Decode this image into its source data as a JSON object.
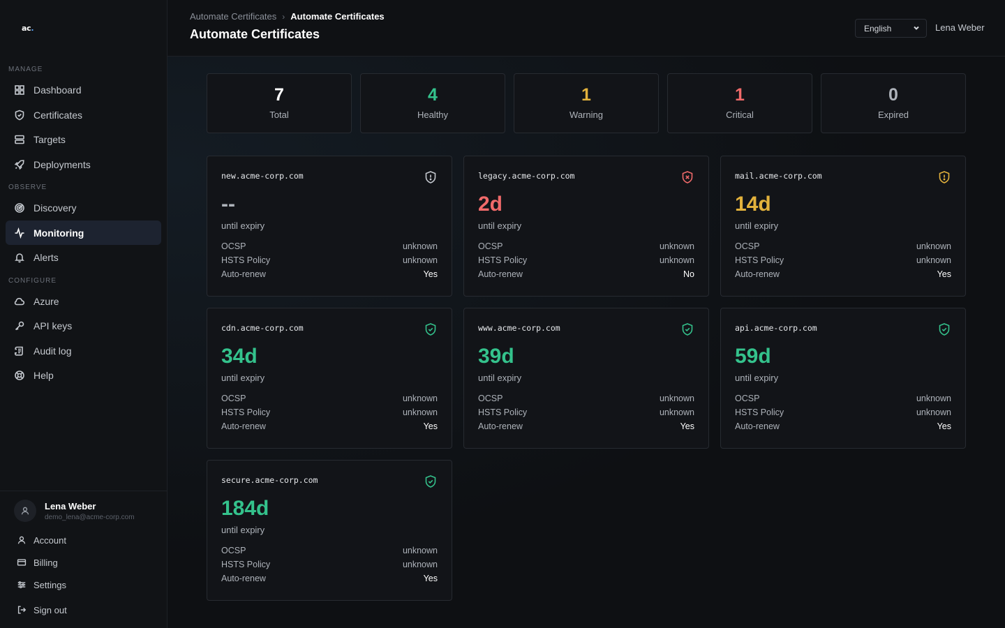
{
  "colors": {
    "healthy": "#34c28c",
    "warning": "#e3b23c",
    "critical": "#f06a6a",
    "neutral": "#ffffff",
    "muted": "#aeb3ba"
  },
  "brand": {
    "logo_text": "ac",
    "logo_dot": "."
  },
  "sidebar": {
    "sections": [
      {
        "label": "MANAGE",
        "items": [
          {
            "label": "Dashboard",
            "icon": "dashboard-icon"
          },
          {
            "label": "Certificates",
            "icon": "shield-icon"
          },
          {
            "label": "Targets",
            "icon": "server-icon"
          },
          {
            "label": "Deployments",
            "icon": "rocket-icon"
          }
        ]
      },
      {
        "label": "OBSERVE",
        "items": [
          {
            "label": "Discovery",
            "icon": "radar-icon"
          },
          {
            "label": "Monitoring",
            "icon": "activity-icon",
            "active": true
          },
          {
            "label": "Alerts",
            "icon": "bell-icon"
          }
        ]
      },
      {
        "label": "CONFIGURE",
        "items": [
          {
            "label": "Azure",
            "icon": "cloud-icon"
          },
          {
            "label": "API keys",
            "icon": "key-icon"
          },
          {
            "label": "Audit log",
            "icon": "scroll-icon"
          },
          {
            "label": "Help",
            "icon": "lifebuoy-icon"
          }
        ]
      }
    ],
    "user": {
      "name": "Lena Weber",
      "email": "demo_lena@acme-corp.com"
    },
    "account_menu": [
      {
        "label": "Account",
        "icon": "user-icon"
      },
      {
        "label": "Billing",
        "icon": "credit-card-icon"
      },
      {
        "label": "Settings",
        "icon": "sliders-icon"
      },
      {
        "label": "Sign out",
        "icon": "sign-out-icon"
      }
    ]
  },
  "header": {
    "breadcrumb": [
      "Automate Certificates",
      "Automate Certificates"
    ],
    "title": "Automate Certificates",
    "language": "English",
    "user_name": "Lena Weber"
  },
  "stats": [
    {
      "value": "7",
      "label": "Total",
      "status": "neutral"
    },
    {
      "value": "4",
      "label": "Healthy",
      "status": "healthy"
    },
    {
      "value": "1",
      "label": "Warning",
      "status": "warning"
    },
    {
      "value": "1",
      "label": "Critical",
      "status": "critical"
    },
    {
      "value": "0",
      "label": "Expired",
      "status": "muted"
    }
  ],
  "cards": [
    {
      "host": "new.acme-corp.com",
      "days": "--",
      "status": "muted",
      "icon": "shield-alert-icon",
      "until": "until expiry",
      "rows": [
        {
          "k": "OCSP",
          "v": "unknown"
        },
        {
          "k": "HSTS Policy",
          "v": "unknown"
        },
        {
          "k": "Auto-renew",
          "v": "Yes",
          "strong": true
        }
      ]
    },
    {
      "host": "legacy.acme-corp.com",
      "days": "2d",
      "status": "critical",
      "icon": "shield-x-icon",
      "until": "until expiry",
      "rows": [
        {
          "k": "OCSP",
          "v": "unknown"
        },
        {
          "k": "HSTS Policy",
          "v": "unknown"
        },
        {
          "k": "Auto-renew",
          "v": "No",
          "strong": true
        }
      ]
    },
    {
      "host": "mail.acme-corp.com",
      "days": "14d",
      "status": "warning",
      "icon": "shield-alert-icon",
      "until": "until expiry",
      "rows": [
        {
          "k": "OCSP",
          "v": "unknown"
        },
        {
          "k": "HSTS Policy",
          "v": "unknown"
        },
        {
          "k": "Auto-renew",
          "v": "Yes",
          "strong": true
        }
      ]
    },
    {
      "host": "cdn.acme-corp.com",
      "days": "34d",
      "status": "healthy",
      "icon": "shield-check-icon",
      "until": "until expiry",
      "rows": [
        {
          "k": "OCSP",
          "v": "unknown"
        },
        {
          "k": "HSTS Policy",
          "v": "unknown"
        },
        {
          "k": "Auto-renew",
          "v": "Yes",
          "strong": true
        }
      ]
    },
    {
      "host": "www.acme-corp.com",
      "days": "39d",
      "status": "healthy",
      "icon": "shield-check-icon",
      "until": "until expiry",
      "rows": [
        {
          "k": "OCSP",
          "v": "unknown"
        },
        {
          "k": "HSTS Policy",
          "v": "unknown"
        },
        {
          "k": "Auto-renew",
          "v": "Yes",
          "strong": true
        }
      ]
    },
    {
      "host": "api.acme-corp.com",
      "days": "59d",
      "status": "healthy",
      "icon": "shield-check-icon",
      "until": "until expiry",
      "rows": [
        {
          "k": "OCSP",
          "v": "unknown"
        },
        {
          "k": "HSTS Policy",
          "v": "unknown"
        },
        {
          "k": "Auto-renew",
          "v": "Yes",
          "strong": true
        }
      ]
    },
    {
      "host": "secure.acme-corp.com",
      "days": "184d",
      "status": "healthy",
      "icon": "shield-check-icon",
      "until": "until expiry",
      "rows": [
        {
          "k": "OCSP",
          "v": "unknown"
        },
        {
          "k": "HSTS Policy",
          "v": "unknown"
        },
        {
          "k": "Auto-renew",
          "v": "Yes",
          "strong": true
        }
      ]
    }
  ]
}
